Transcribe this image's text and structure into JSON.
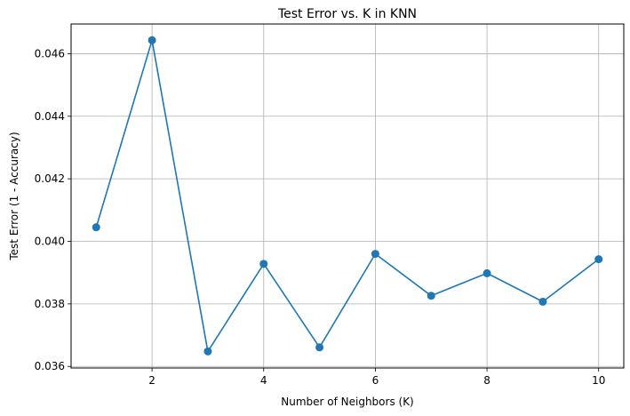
{
  "chart_data": {
    "type": "line",
    "title": "Test Error vs. K in KNN",
    "xlabel": "Number of Neighbors (K)",
    "ylabel": "Test Error (1 - Accuracy)",
    "x": [
      1,
      2,
      3,
      4,
      5,
      6,
      7,
      8,
      9,
      10
    ],
    "series": [
      {
        "values": [
          0.04045,
          0.04643,
          0.03648,
          0.03928,
          0.03661,
          0.0396,
          0.03826,
          0.03898,
          0.03807,
          0.03943
        ],
        "color": "#1f77b4",
        "marker": "circle"
      }
    ],
    "xlim": [
      0.55,
      10.45
    ],
    "ylim": [
      0.03595,
      0.04695
    ],
    "xticks": [
      2,
      4,
      6,
      8,
      10
    ],
    "xtick_labels": [
      "2",
      "4",
      "6",
      "8",
      "10"
    ],
    "yticks": [
      0.036,
      0.038,
      0.04,
      0.042,
      0.044,
      0.046
    ],
    "ytick_labels": [
      "0.036",
      "0.038",
      "0.040",
      "0.042",
      "0.044",
      "0.046"
    ],
    "grid": true
  }
}
